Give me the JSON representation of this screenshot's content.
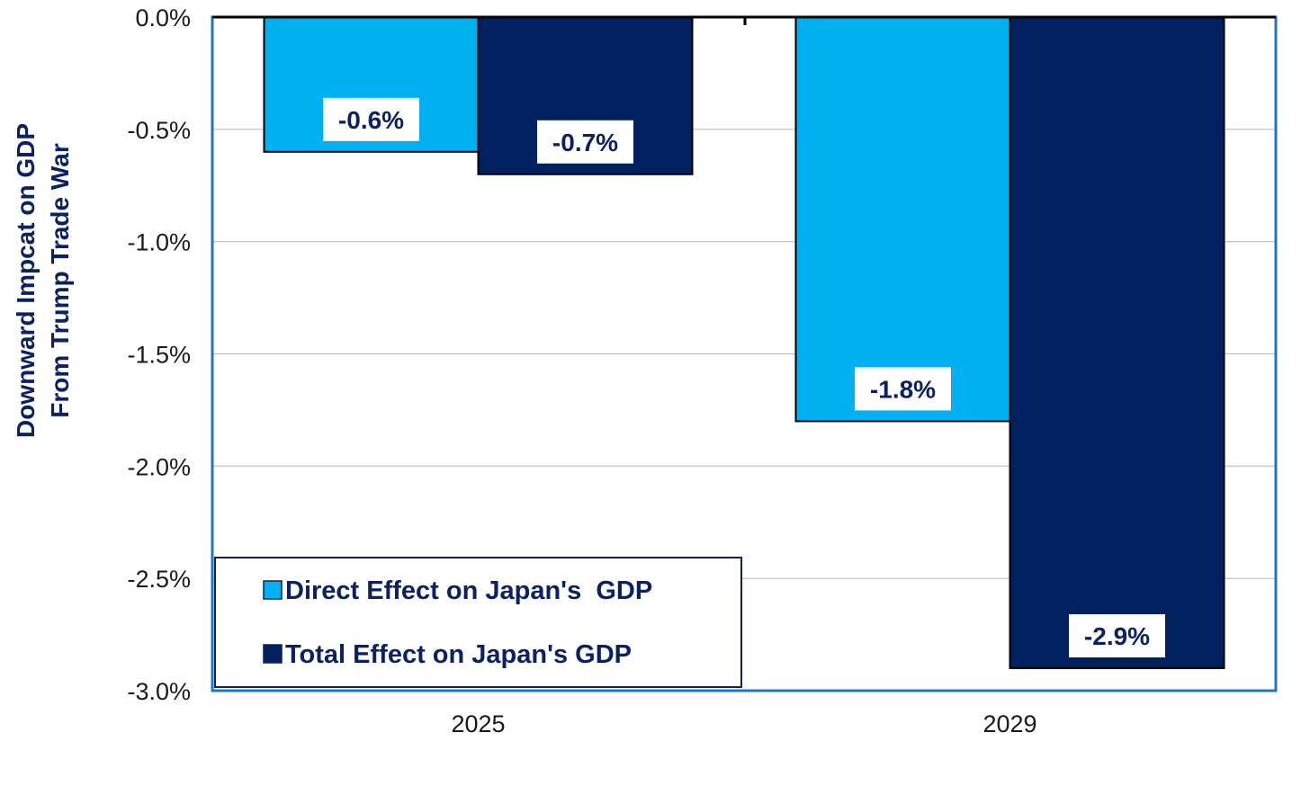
{
  "chart_data": {
    "type": "bar",
    "categories": [
      "2025",
      "2029"
    ],
    "series": [
      {
        "name": "Direct Effect on Japan's  GDP",
        "values": [
          -0.6,
          -1.8
        ],
        "labels": [
          "-0.6%",
          "-1.8%"
        ],
        "color": "#00b0f0"
      },
      {
        "name": "Total Effect on Japan's GDP",
        "values": [
          -0.7,
          -2.9
        ],
        "labels": [
          "-0.7%",
          "-2.9%"
        ],
        "color": "#002060"
      }
    ],
    "title": "",
    "xlabel": "",
    "ylabel": [
      "Downward Impcat on GDP",
      "From Trump Trade War"
    ],
    "ylim": [
      -3.0,
      0.0
    ],
    "yticks": [
      0.0,
      -0.5,
      -1.0,
      -1.5,
      -2.0,
      -2.5,
      -3.0
    ],
    "ytick_labels": [
      "0.0%",
      "-0.5%",
      "-1.0%",
      "-1.5%",
      "-2.0%",
      "-2.5%",
      "-3.0%"
    ],
    "grid": true,
    "legend_position": "bottom-left",
    "colors": {
      "axis": "#000000",
      "plot_border": "#1f77c4",
      "grid": "#bfbfbf",
      "label_text": "#0b2163"
    }
  }
}
